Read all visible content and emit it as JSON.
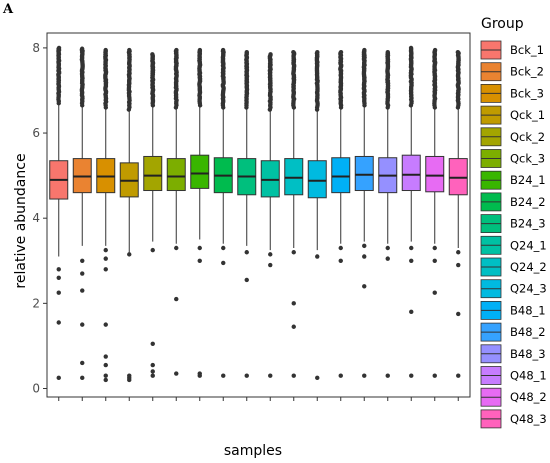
{
  "panel_letter": "A",
  "chart_data": {
    "type": "boxplot",
    "title": "",
    "xlabel": "samples",
    "ylabel": "relative abundance",
    "ylim": [
      -0.2,
      8.35
    ],
    "yticks": [
      0,
      2,
      4,
      6,
      8
    ],
    "grid": false,
    "legend": {
      "title": "Group",
      "position": "right"
    },
    "series": [
      {
        "name": "Bck_1",
        "color": "#F8766D",
        "q1": 4.45,
        "median": 4.9,
        "q3": 5.35,
        "whisker_low": 3.1,
        "whisker_high": 6.7,
        "outliers_low": [
          2.8,
          2.6,
          2.25,
          1.55,
          0.25
        ],
        "outliers_high_range": [
          6.7,
          8.0
        ]
      },
      {
        "name": "Bck_2",
        "color": "#EA8331",
        "q1": 4.6,
        "median": 4.98,
        "q3": 5.4,
        "whisker_low": 3.35,
        "whisker_high": 6.65,
        "outliers_low": [
          3.0,
          2.7,
          2.3,
          1.5,
          0.6,
          0.25
        ],
        "outliers_high_range": [
          6.65,
          7.98
        ]
      },
      {
        "name": "Bck_3",
        "color": "#D89000",
        "q1": 4.6,
        "median": 4.98,
        "q3": 5.4,
        "whisker_low": 3.35,
        "whisker_high": 6.6,
        "outliers_low": [
          3.25,
          3.05,
          2.8,
          1.5,
          0.75,
          0.55,
          0.3,
          0.2
        ],
        "outliers_high_range": [
          6.6,
          7.95
        ]
      },
      {
        "name": "Qck_1",
        "color": "#C09B00",
        "q1": 4.5,
        "median": 4.88,
        "q3": 5.3,
        "whisker_low": 3.2,
        "whisker_high": 6.55,
        "outliers_low": [
          3.15,
          0.3,
          0.25,
          0.2
        ],
        "outliers_high_range": [
          6.55,
          7.95
        ]
      },
      {
        "name": "Qck_2",
        "color": "#A3A500",
        "q1": 4.65,
        "median": 5.0,
        "q3": 5.45,
        "whisker_low": 3.45,
        "whisker_high": 6.65,
        "outliers_low": [
          3.25,
          1.05,
          0.55,
          0.4,
          0.3
        ],
        "outliers_high_range": [
          6.65,
          7.85
        ]
      },
      {
        "name": "Qck_3",
        "color": "#7CAE00",
        "q1": 4.65,
        "median": 4.98,
        "q3": 5.4,
        "whisker_low": 3.4,
        "whisker_high": 6.6,
        "outliers_low": [
          3.3,
          2.1,
          0.35
        ],
        "outliers_high_range": [
          6.6,
          7.95
        ]
      },
      {
        "name": "B24_1",
        "color": "#39B600",
        "q1": 4.7,
        "median": 5.05,
        "q3": 5.48,
        "whisker_low": 3.5,
        "whisker_high": 6.65,
        "outliers_low": [
          3.3,
          3.0,
          0.35,
          0.3
        ],
        "outliers_high_range": [
          6.65,
          7.95
        ]
      },
      {
        "name": "B24_2",
        "color": "#00BB4E",
        "q1": 4.6,
        "median": 5.0,
        "q3": 5.42,
        "whisker_low": 3.4,
        "whisker_high": 6.6,
        "outliers_low": [
          3.3,
          2.95,
          0.3
        ],
        "outliers_high_range": [
          6.6,
          7.95
        ]
      },
      {
        "name": "B24_3",
        "color": "#00BF7D",
        "q1": 4.55,
        "median": 4.98,
        "q3": 5.4,
        "whisker_low": 3.35,
        "whisker_high": 6.6,
        "outliers_low": [
          3.2,
          2.55,
          0.3
        ],
        "outliers_high_range": [
          6.6,
          7.9
        ]
      },
      {
        "name": "Q24_1",
        "color": "#00C1A3",
        "q1": 4.5,
        "median": 4.9,
        "q3": 5.35,
        "whisker_low": 3.25,
        "whisker_high": 6.55,
        "outliers_low": [
          3.15,
          2.9,
          0.3
        ],
        "outliers_high_range": [
          6.55,
          7.85
        ]
      },
      {
        "name": "Q24_2",
        "color": "#00BFC4",
        "q1": 4.55,
        "median": 4.95,
        "q3": 5.4,
        "whisker_low": 3.3,
        "whisker_high": 6.6,
        "outliers_low": [
          3.2,
          2.0,
          1.45,
          0.3
        ],
        "outliers_high_range": [
          6.6,
          7.9
        ]
      },
      {
        "name": "Q24_3",
        "color": "#00BAE0",
        "q1": 4.48,
        "median": 4.88,
        "q3": 5.35,
        "whisker_low": 3.25,
        "whisker_high": 6.55,
        "outliers_low": [
          3.1,
          0.25
        ],
        "outliers_high_range": [
          6.55,
          7.9
        ]
      },
      {
        "name": "B48_1",
        "color": "#00B0F6",
        "q1": 4.6,
        "median": 4.98,
        "q3": 5.42,
        "whisker_low": 3.4,
        "whisker_high": 6.6,
        "outliers_low": [
          3.3,
          3.0,
          0.3
        ],
        "outliers_high_range": [
          6.6,
          7.9
        ]
      },
      {
        "name": "B48_2",
        "color": "#35A2FF",
        "q1": 4.65,
        "median": 5.02,
        "q3": 5.45,
        "whisker_low": 3.45,
        "whisker_high": 6.65,
        "outliers_low": [
          3.35,
          3.1,
          2.4,
          0.3
        ],
        "outliers_high_range": [
          6.65,
          7.95
        ]
      },
      {
        "name": "B48_3",
        "color": "#9590FF",
        "q1": 4.6,
        "median": 5.0,
        "q3": 5.42,
        "whisker_low": 3.4,
        "whisker_high": 6.6,
        "outliers_low": [
          3.3,
          3.05,
          0.3
        ],
        "outliers_high_range": [
          6.6,
          7.9
        ]
      },
      {
        "name": "Q48_1",
        "color": "#C77CFF",
        "q1": 4.65,
        "median": 5.02,
        "q3": 5.48,
        "whisker_low": 3.45,
        "whisker_high": 6.65,
        "outliers_low": [
          3.3,
          3.0,
          1.8,
          0.3
        ],
        "outliers_high_range": [
          6.65,
          8.0
        ]
      },
      {
        "name": "Q48_2",
        "color": "#E76BF3",
        "q1": 4.62,
        "median": 5.0,
        "q3": 5.45,
        "whisker_low": 3.4,
        "whisker_high": 6.6,
        "outliers_low": [
          3.3,
          3.0,
          2.25,
          0.3
        ],
        "outliers_high_range": [
          6.6,
          7.95
        ]
      },
      {
        "name": "Q48_3",
        "color": "#FF62BC",
        "q1": 4.55,
        "median": 4.95,
        "q3": 5.4,
        "whisker_low": 3.3,
        "whisker_high": 6.6,
        "outliers_low": [
          3.2,
          2.9,
          1.75,
          0.3
        ],
        "outliers_high_range": [
          6.6,
          7.9
        ]
      }
    ]
  }
}
